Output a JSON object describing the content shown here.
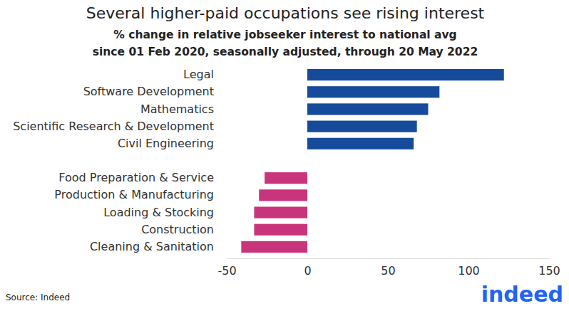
{
  "chart_data": {
    "type": "bar",
    "orientation": "horizontal",
    "title": "Several higher-paid occupations see rising interest",
    "subtitle": [
      "% change in relative jobseeker interest to national avg",
      "since 01 Feb 2020, seasonally adjusted, through 20 May 2022"
    ],
    "source": "Source: Indeed",
    "logo": "indeed",
    "categories": [
      "Legal",
      "Software Development",
      "Mathematics",
      "Scientific Research & Development",
      "Civil Engineering",
      "Food Preparation & Service",
      "Production & Manufacturing",
      "Loading & Stocking",
      "Construction",
      "Cleaning & Sanitation"
    ],
    "values": [
      122,
      82,
      75,
      68,
      66,
      -26.5,
      -30,
      -33,
      -33,
      -41
    ],
    "colors": [
      "#164a9b",
      "#164a9b",
      "#164a9b",
      "#164a9b",
      "#164a9b",
      "#c9357c",
      "#c9357c",
      "#c9357c",
      "#c9357c",
      "#c9357c"
    ],
    "xlim": [
      -50,
      150
    ],
    "xticks": [
      -50,
      0,
      50,
      100,
      150
    ],
    "grid": false
  }
}
